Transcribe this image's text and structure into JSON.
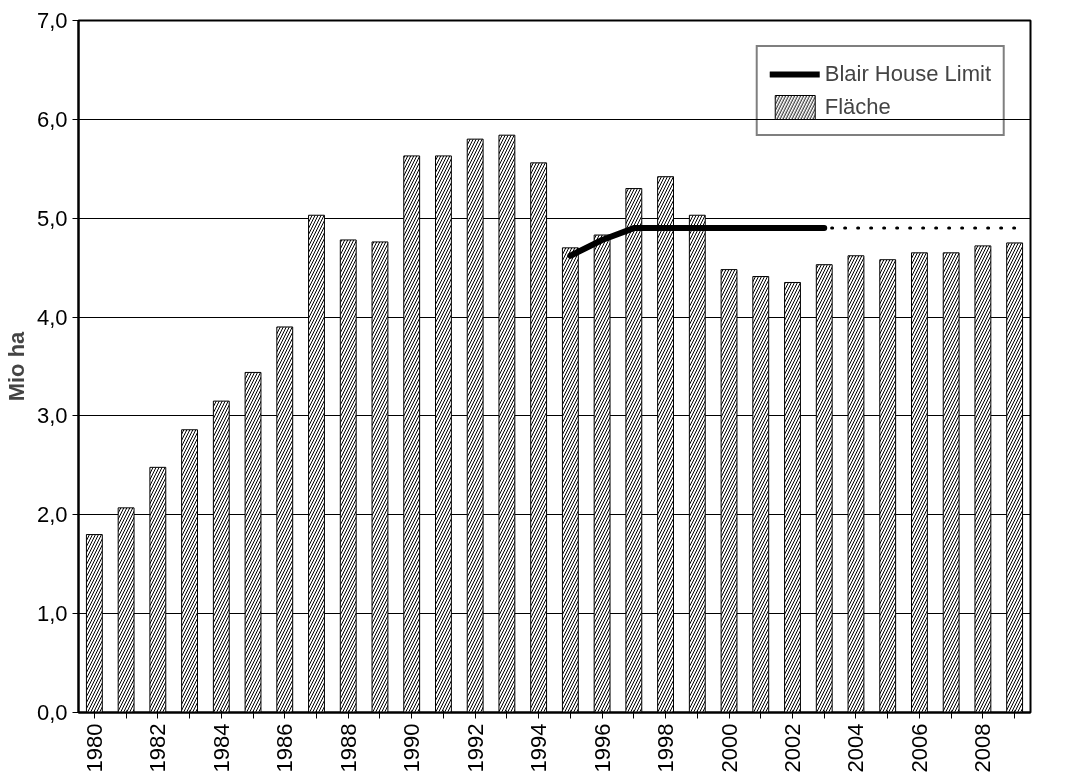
{
  "chart_data": {
    "type": "bar",
    "ylabel": "Mio ha",
    "categories": [
      "1980",
      null,
      "1982",
      null,
      "1984",
      null,
      "1986",
      null,
      "1988",
      null,
      "1990",
      null,
      "1992",
      null,
      "1994",
      null,
      "1996",
      null,
      "1998",
      null,
      "2000",
      null,
      "2002",
      null,
      "2004",
      null,
      "2006",
      null,
      "2008",
      null
    ],
    "series": [
      {
        "name": "Blair House Limit",
        "type": "line",
        "color": "#000000",
        "line_style": "solid",
        "values": [
          null,
          null,
          null,
          null,
          null,
          null,
          null,
          null,
          null,
          null,
          null,
          null,
          null,
          null,
          null,
          4.62,
          4.78,
          4.9,
          4.9,
          4.9,
          4.9,
          4.9,
          4.9,
          4.9,
          null,
          null,
          null,
          null,
          null,
          null
        ]
      },
      {
        "type": "line",
        "color": "#000000",
        "line_style": "dotted",
        "values": [
          null,
          null,
          null,
          null,
          null,
          null,
          null,
          null,
          null,
          null,
          null,
          null,
          null,
          null,
          null,
          null,
          null,
          null,
          null,
          null,
          null,
          null,
          null,
          4.9,
          4.9,
          4.9,
          4.9,
          4.9,
          4.9,
          4.9
        ]
      },
      {
        "name": "Fläche",
        "color": "#ffffff",
        "values": [
          1.8,
          2.07,
          2.48,
          2.86,
          3.15,
          3.44,
          3.9,
          5.03,
          4.78,
          4.76,
          5.63,
          5.63,
          5.8,
          5.84,
          5.56,
          4.7,
          4.83,
          5.3,
          5.42,
          5.03,
          4.48,
          4.41,
          4.35,
          4.53,
          4.62,
          4.58,
          4.65,
          4.65,
          4.72,
          4.75
        ]
      }
    ],
    "ylim": [
      0,
      7
    ],
    "yticks": [
      {
        "value": 0,
        "label": "0,0"
      },
      {
        "value": 1,
        "label": "1,0"
      },
      {
        "value": 2,
        "label": "2,0"
      },
      {
        "value": 3,
        "label": "3,0"
      },
      {
        "value": 4,
        "label": "4,0"
      },
      {
        "value": 5,
        "label": "5,0"
      },
      {
        "value": 6,
        "label": "6,0"
      },
      {
        "value": 7,
        "label": "7,0"
      }
    ],
    "grid": "y",
    "legend": "top right"
  }
}
